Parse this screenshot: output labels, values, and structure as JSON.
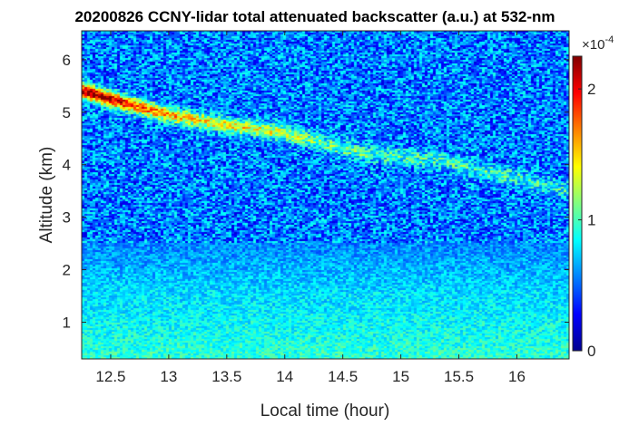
{
  "chart_data": {
    "type": "heatmap",
    "title": "20200826 CCNY-lidar total attenuated backscatter (a.u.) at 532-nm",
    "xlabel": "Local time (hour)",
    "ylabel": "Altitude (km)",
    "xlim": [
      12.25,
      16.45
    ],
    "ylim": [
      0.3,
      6.55
    ],
    "x_ticks": [
      "12.5",
      "13",
      "13.5",
      "14",
      "14.5",
      "15",
      "15.5",
      "16"
    ],
    "y_ticks": [
      "1",
      "2",
      "3",
      "4",
      "5",
      "6"
    ],
    "colormap": "jet",
    "colorbar": {
      "clim": [
        0,
        2.25
      ],
      "ticks": [
        "0",
        "1",
        "2"
      ],
      "multiplier": "×10",
      "multiplier_exponent": "-4",
      "colors": [
        "#00008f",
        "#0000ff",
        "#0080ff",
        "#00ffff",
        "#80ff80",
        "#ffff00",
        "#ff8000",
        "#ff0000",
        "#800000"
      ]
    },
    "background_level": 0.55,
    "noise_amplitude": 0.35,
    "layer_trace": {
      "time": [
        12.25,
        12.5,
        12.75,
        13.0,
        13.25,
        13.5,
        13.75,
        14.0,
        14.25,
        14.5,
        14.75,
        15.0,
        15.25,
        15.5,
        15.75,
        16.0,
        16.25,
        16.45
      ],
      "altitude": [
        5.4,
        5.25,
        5.1,
        4.95,
        4.85,
        4.75,
        4.68,
        4.6,
        4.45,
        4.3,
        4.2,
        4.15,
        4.1,
        4.0,
        3.85,
        3.75,
        3.6,
        3.5
      ],
      "peak": [
        2.2,
        2.2,
        1.75,
        1.6,
        1.45,
        1.4,
        1.4,
        1.3,
        1.1,
        1.05,
        1.0,
        1.0,
        0.95,
        0.95,
        0.95,
        0.95,
        0.9,
        0.9
      ]
    }
  }
}
